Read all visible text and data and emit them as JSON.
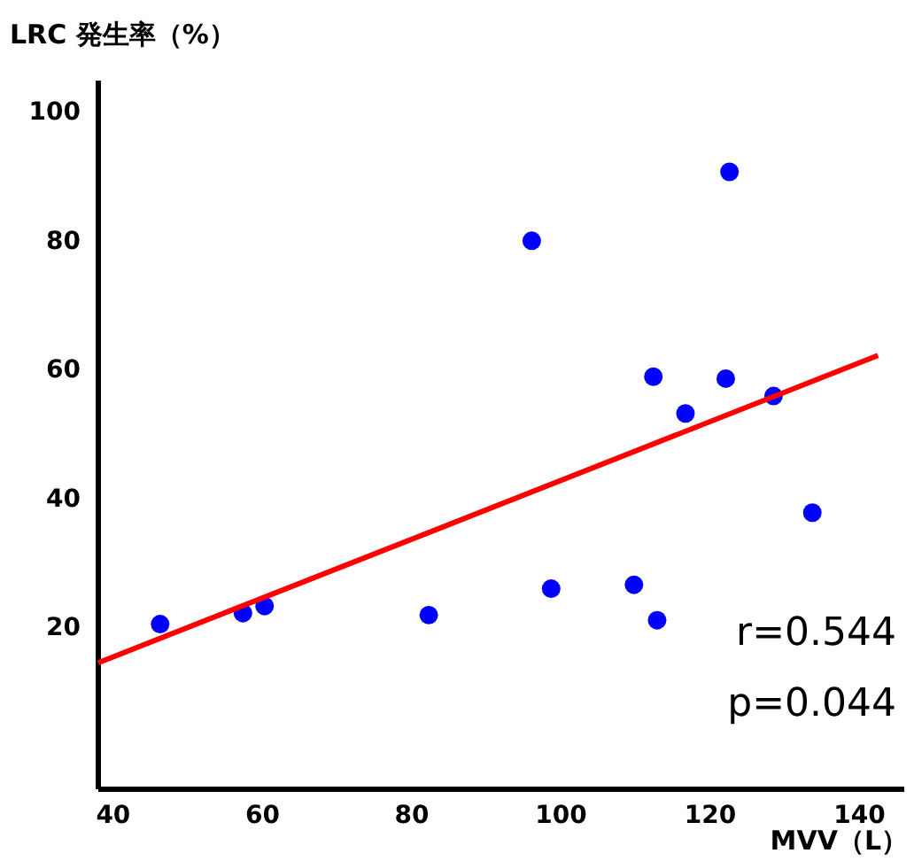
{
  "chart_data": {
    "type": "scatter",
    "ylabel": "LRC 発生率（%）",
    "xlabel": "MVV（L）",
    "xlim": [
      38,
      146
    ],
    "ylim": [
      -5,
      105
    ],
    "xticks": [
      40,
      60,
      80,
      100,
      120,
      140
    ],
    "yticks": [
      20,
      40,
      60,
      80,
      100
    ],
    "marker": "circle",
    "annotations": [
      "r=0.544",
      "p=0.044"
    ],
    "series": [
      {
        "color": "#0000ff",
        "x": [
          46.4,
          57.5,
          60.4,
          82.4,
          96.2,
          98.8,
          109.9,
          113,
          112.5,
          116.8,
          122.2,
          122.7,
          128.6,
          133.8
        ],
        "values": [
          20.5,
          22.2,
          23.3,
          21.9,
          80,
          26,
          26.6,
          21.1,
          58.9,
          53.2,
          58.6,
          90.7,
          55.9,
          37.8
        ]
      },
      {
        "type": "line",
        "marker": "none",
        "color": "#ff0000",
        "x": [
          38.1,
          142.6
        ],
        "values": [
          14.5,
          62.2
        ]
      }
    ]
  }
}
